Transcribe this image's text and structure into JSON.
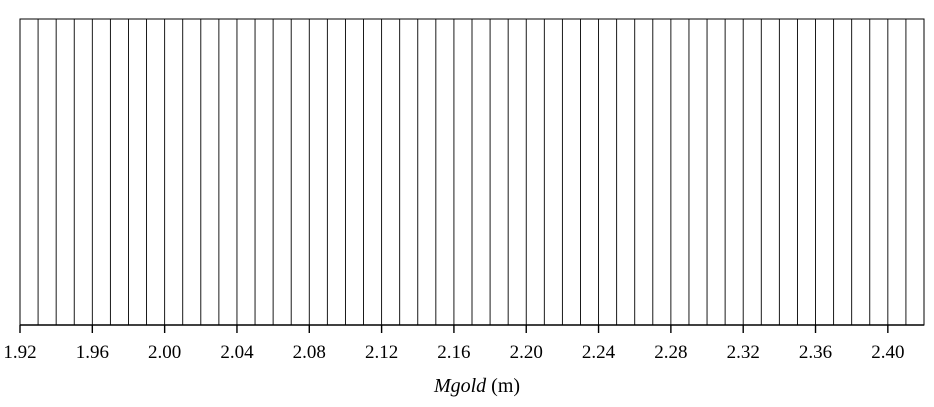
{
  "chart_data": {
    "type": "bar",
    "title": "",
    "xlabel_var": "Mgold",
    "xlabel_unit": "(m)",
    "xlim": [
      1.92,
      2.42
    ],
    "grid_step": 0.01,
    "major_tick_step": 0.04,
    "major_ticks": [
      1.92,
      1.96,
      2.0,
      2.04,
      2.08,
      2.12,
      2.16,
      2.2,
      2.24,
      2.28,
      2.32,
      2.36,
      2.4
    ],
    "tick_labels": [
      "1.92",
      "1.96",
      "2.00",
      "2.04",
      "2.08",
      "2.12",
      "2.16",
      "2.20",
      "2.24",
      "2.28",
      "2.32",
      "2.36",
      "2.40"
    ],
    "series": [],
    "grid": true,
    "legend": "none"
  }
}
